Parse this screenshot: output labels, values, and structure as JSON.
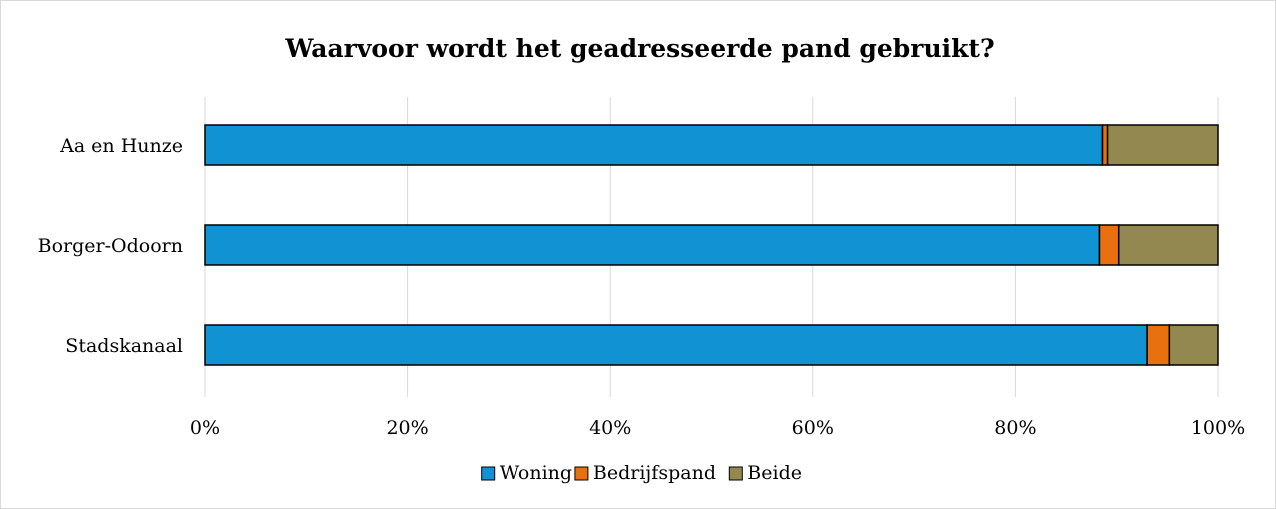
{
  "chart_data": {
    "type": "bar",
    "orientation": "horizontal",
    "stacked": "percent",
    "title": "Waarvoor wordt het geadresseerde pand gebruikt?",
    "categories": [
      "Aa en Hunze",
      "Borger-Odoorn",
      "Stadskanaal"
    ],
    "series": [
      {
        "name": "Woning",
        "color": "#1192D2",
        "values": [
          88.6,
          88.3,
          93.0
        ]
      },
      {
        "name": "Bedrijfspand",
        "color": "#E8700F",
        "values": [
          0.5,
          1.9,
          2.2
        ]
      },
      {
        "name": "Beide",
        "color": "#938950",
        "values": [
          10.9,
          9.8,
          4.8
        ]
      }
    ],
    "xlim": [
      0,
      100
    ],
    "xticks": [
      0,
      20,
      40,
      60,
      80,
      100
    ],
    "xtick_labels": [
      "0%",
      "20%",
      "40%",
      "60%",
      "80%",
      "100%"
    ],
    "grid": true,
    "legend_position": "bottom"
  }
}
